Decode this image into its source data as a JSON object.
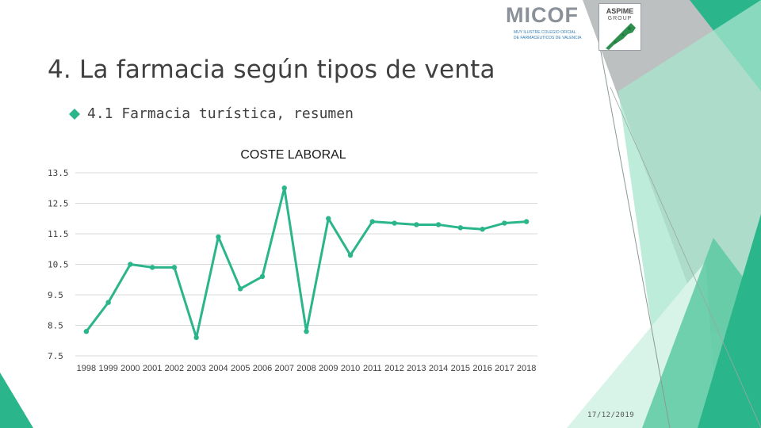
{
  "slide": {
    "title": "4. La farmacia según tipos de venta",
    "bullet": "4.1 Farmacia turística, resumen",
    "date": "17/12/2019"
  },
  "logos": {
    "micof": {
      "name": "MICOF",
      "caption_line1": "MUY ILUSTRE COLEGIO OFICIAL",
      "caption_line2": "DE FARMACÉUTICOS DE VALENCIA"
    },
    "aspime": {
      "name": "ASPIME",
      "group": "GROUP"
    }
  },
  "colors": {
    "accent": "#2bb58a",
    "accent_light": "#a8e6cf",
    "gray_panel": "#bcc0c0",
    "text": "#404040",
    "gridline": "#d9d9d9"
  },
  "icons": {
    "bullet": "diamond-bullet-icon"
  },
  "chart_data": {
    "type": "line",
    "title": "COSTE LABORAL",
    "categories": [
      "1998",
      "1999",
      "2000",
      "2001",
      "2002",
      "2003",
      "2004",
      "2005",
      "2006",
      "2007",
      "2008",
      "2009",
      "2010",
      "2011",
      "2012",
      "2013",
      "2014",
      "2015",
      "2016",
      "2017",
      "2018"
    ],
    "series": [
      {
        "values": [
          8.3,
          9.25,
          10.5,
          10.4,
          10.4,
          8.1,
          11.4,
          9.7,
          10.1,
          13.0,
          8.3,
          12.0,
          10.8,
          11.9,
          11.85,
          11.8,
          11.8,
          11.7,
          11.65,
          11.85,
          11.9
        ]
      }
    ],
    "yticks": [
      "13.5",
      "12.5",
      "11.5",
      "10.5",
      "9.5",
      "8.5",
      "7.5"
    ],
    "ylim": [
      7.5,
      13.5
    ],
    "grid": true,
    "legend": false,
    "xlabel": "",
    "ylabel": ""
  }
}
